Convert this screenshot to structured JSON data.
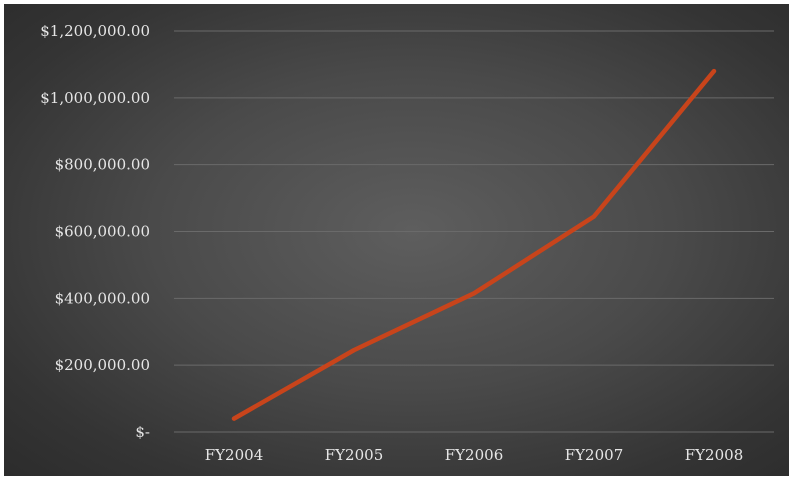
{
  "chart_data": {
    "type": "line",
    "title": "",
    "xlabel": "",
    "ylabel": "",
    "categories": [
      "FY2004",
      "FY2005",
      "FY2006",
      "FY2007",
      "FY2008"
    ],
    "series": [
      {
        "values": [
          40000,
          245000,
          415000,
          645000,
          1080000
        ],
        "color": "#c8441b"
      }
    ],
    "ylim": [
      0,
      1200000
    ],
    "y_ticks": [
      0,
      200000,
      400000,
      600000,
      800000,
      1000000,
      1200000
    ],
    "y_tick_labels": [
      "$-",
      "$200,000.00",
      "$400,000.00",
      "$600,000.00",
      "$800,000.00",
      "$1,000,000.00",
      "$1,200,000.00"
    ],
    "grid": true,
    "legend": "none"
  }
}
